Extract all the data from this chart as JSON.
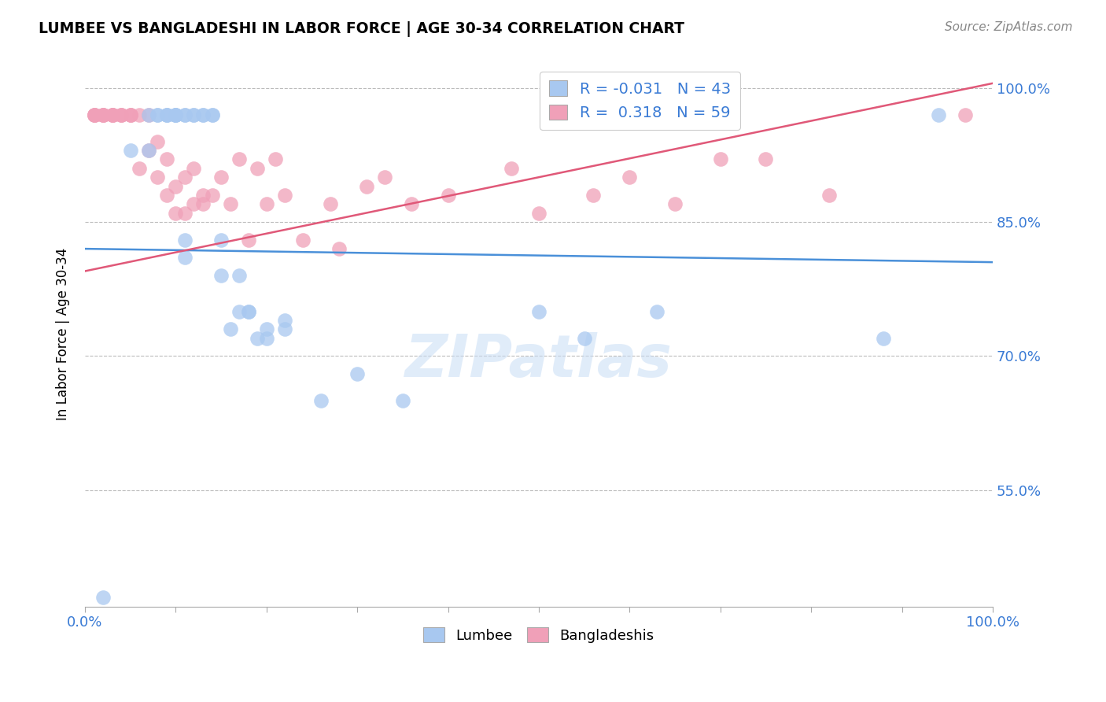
{
  "title": "LUMBEE VS BANGLADESHI IN LABOR FORCE | AGE 30-34 CORRELATION CHART",
  "source_text": "Source: ZipAtlas.com",
  "ylabel": "In Labor Force | Age 30-34",
  "xlim": [
    0.0,
    1.0
  ],
  "ylim": [
    0.42,
    1.03
  ],
  "yticks": [
    0.55,
    0.7,
    0.85,
    1.0
  ],
  "ytick_labels": [
    "55.0%",
    "70.0%",
    "85.0%",
    "100.0%"
  ],
  "legend_r_blue": "-0.031",
  "legend_n_blue": "43",
  "legend_r_pink": "0.318",
  "legend_n_pink": "59",
  "blue_color": "#A8C8F0",
  "pink_color": "#F0A0B8",
  "line_blue_color": "#4A90D9",
  "line_pink_color": "#E05878",
  "watermark": "ZIPatlas",
  "lumbee_x": [
    0.02,
    0.05,
    0.07,
    0.07,
    0.08,
    0.08,
    0.09,
    0.09,
    0.09,
    0.1,
    0.1,
    0.1,
    0.1,
    0.11,
    0.11,
    0.11,
    0.11,
    0.12,
    0.12,
    0.13,
    0.13,
    0.14,
    0.14,
    0.15,
    0.15,
    0.16,
    0.17,
    0.17,
    0.18,
    0.18,
    0.19,
    0.2,
    0.2,
    0.22,
    0.22,
    0.26,
    0.3,
    0.35,
    0.5,
    0.55,
    0.63,
    0.88,
    0.94
  ],
  "lumbee_y": [
    0.43,
    0.93,
    0.93,
    0.97,
    0.97,
    0.97,
    0.97,
    0.97,
    0.97,
    0.97,
    0.97,
    0.97,
    0.97,
    0.83,
    0.81,
    0.97,
    0.97,
    0.97,
    0.97,
    0.97,
    0.97,
    0.97,
    0.97,
    0.83,
    0.79,
    0.73,
    0.79,
    0.75,
    0.75,
    0.75,
    0.72,
    0.73,
    0.72,
    0.74,
    0.73,
    0.65,
    0.68,
    0.65,
    0.75,
    0.72,
    0.75,
    0.72,
    0.97
  ],
  "bangladeshi_x": [
    0.01,
    0.01,
    0.01,
    0.01,
    0.02,
    0.02,
    0.02,
    0.02,
    0.03,
    0.03,
    0.03,
    0.03,
    0.04,
    0.04,
    0.04,
    0.05,
    0.05,
    0.05,
    0.06,
    0.06,
    0.07,
    0.07,
    0.08,
    0.08,
    0.09,
    0.09,
    0.1,
    0.1,
    0.11,
    0.11,
    0.12,
    0.12,
    0.13,
    0.13,
    0.14,
    0.15,
    0.16,
    0.17,
    0.18,
    0.19,
    0.2,
    0.21,
    0.22,
    0.24,
    0.27,
    0.28,
    0.31,
    0.33,
    0.36,
    0.4,
    0.47,
    0.5,
    0.56,
    0.6,
    0.65,
    0.7,
    0.75,
    0.82,
    0.97
  ],
  "bangladeshi_y": [
    0.97,
    0.97,
    0.97,
    0.97,
    0.97,
    0.97,
    0.97,
    0.97,
    0.97,
    0.97,
    0.97,
    0.97,
    0.97,
    0.97,
    0.97,
    0.97,
    0.97,
    0.97,
    0.97,
    0.91,
    0.97,
    0.93,
    0.94,
    0.9,
    0.92,
    0.88,
    0.89,
    0.86,
    0.9,
    0.86,
    0.87,
    0.91,
    0.87,
    0.88,
    0.88,
    0.9,
    0.87,
    0.92,
    0.83,
    0.91,
    0.87,
    0.92,
    0.88,
    0.83,
    0.87,
    0.82,
    0.89,
    0.9,
    0.87,
    0.88,
    0.91,
    0.86,
    0.88,
    0.9,
    0.87,
    0.92,
    0.92,
    0.88,
    0.97
  ]
}
